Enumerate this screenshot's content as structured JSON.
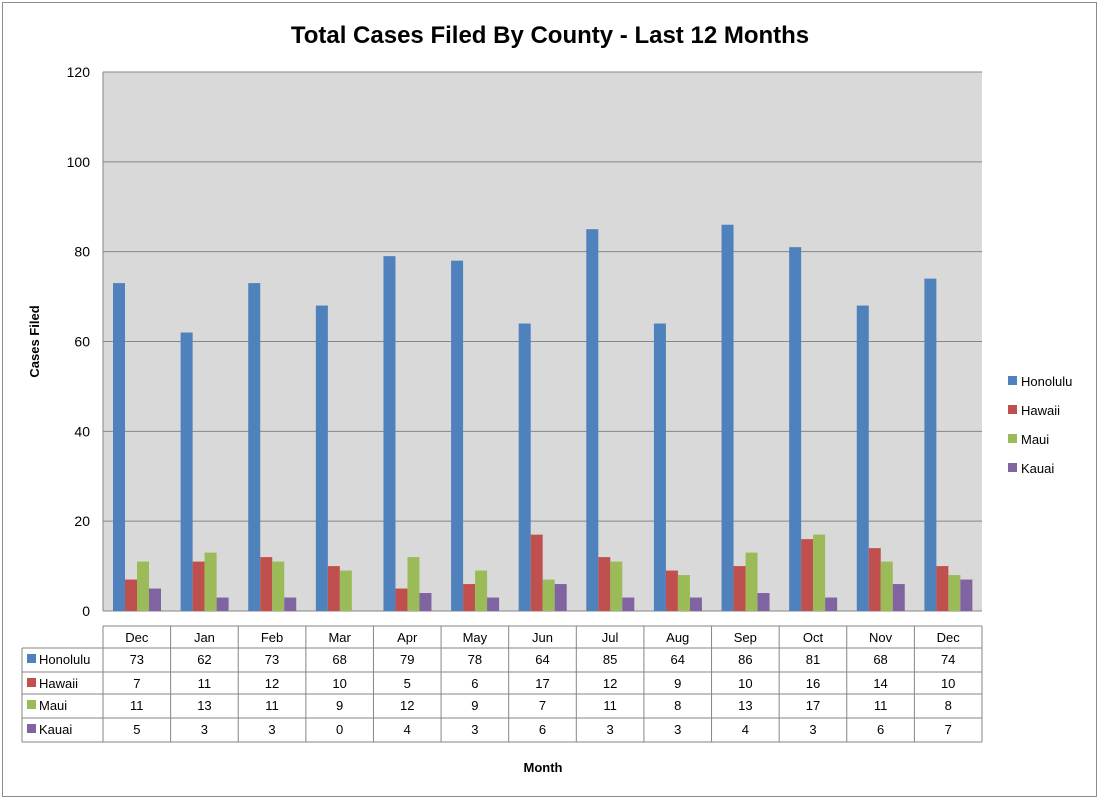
{
  "chart_data": {
    "type": "bar",
    "title": "Total Cases Filed By County - Last 12 Months",
    "xlabel": "Month",
    "ylabel": "Cases Filed",
    "ylim": [
      0,
      120
    ],
    "yticks": [
      0,
      20,
      40,
      60,
      80,
      100,
      120
    ],
    "grid": true,
    "legend_position": "right",
    "categories": [
      "Dec",
      "Jan",
      "Feb",
      "Mar",
      "Apr",
      "May",
      "Jun",
      "Jul",
      "Aug",
      "Sep",
      "Oct",
      "Nov",
      "Dec"
    ],
    "series": [
      {
        "name": "Honolulu",
        "color": "#4f81bd",
        "values": [
          73,
          62,
          73,
          68,
          79,
          78,
          64,
          85,
          64,
          86,
          81,
          68,
          74
        ]
      },
      {
        "name": "Hawaii",
        "color": "#c0504d",
        "values": [
          7,
          11,
          12,
          10,
          5,
          6,
          17,
          12,
          9,
          10,
          16,
          14,
          10
        ]
      },
      {
        "name": "Maui",
        "color": "#9bbb59",
        "values": [
          11,
          13,
          11,
          9,
          12,
          9,
          7,
          11,
          8,
          13,
          17,
          11,
          8
        ]
      },
      {
        "name": "Kauai",
        "color": "#8064a2",
        "values": [
          5,
          3,
          3,
          0,
          4,
          3,
          6,
          3,
          3,
          4,
          3,
          6,
          7
        ]
      }
    ],
    "plot_background": "#d9d9d9"
  }
}
